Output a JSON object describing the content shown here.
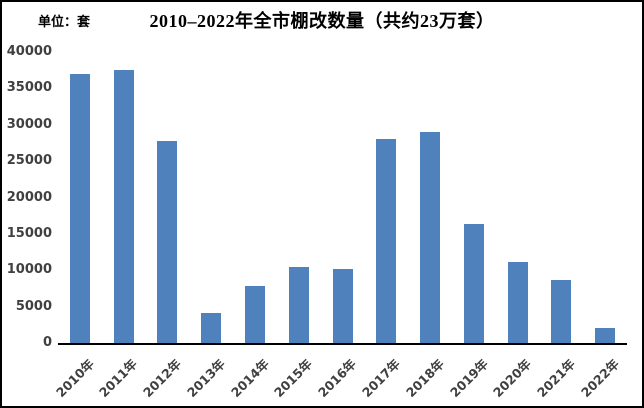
{
  "chart_data": {
    "type": "bar",
    "title": "2010–2022年全市棚改数量（共约23万套）",
    "unit_label": "单位：套",
    "categories": [
      "2010年",
      "2011年",
      "2012年",
      "2013年",
      "2014年",
      "2015年",
      "2016年",
      "2017年",
      "2018年",
      "2019年",
      "2020年",
      "2021年",
      "2022年"
    ],
    "values": [
      37000,
      37500,
      27800,
      4100,
      7800,
      10500,
      10200,
      28100,
      29000,
      16400,
      11200,
      8600,
      2100
    ],
    "xlabel": "",
    "ylabel": "",
    "ylim": [
      0,
      40000
    ],
    "yticks": [
      0,
      5000,
      10000,
      15000,
      20000,
      25000,
      30000,
      35000,
      40000
    ],
    "grid": false,
    "legend": false,
    "bar_color": "#4f81bd",
    "axis_line_color": "#000000",
    "tick_label_color": "#404040",
    "title_color": "#000000",
    "background_color": "#ffffff"
  }
}
